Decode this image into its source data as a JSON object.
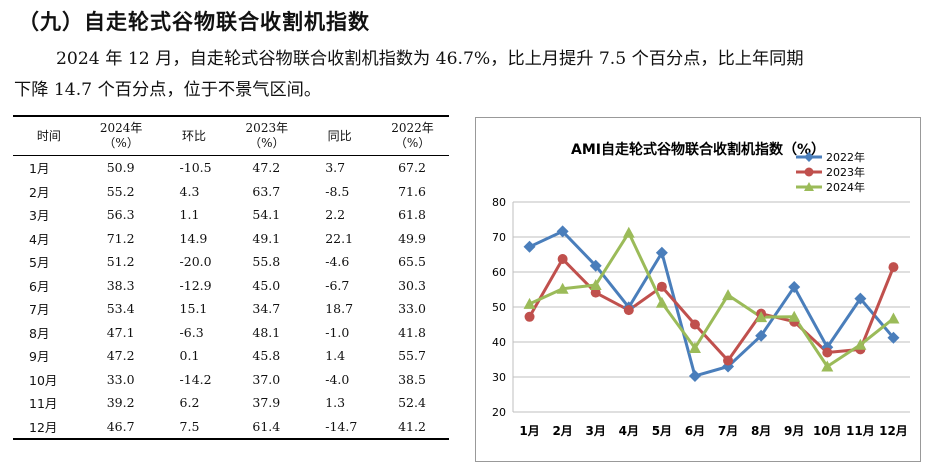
{
  "heading": "（九）自走轮式谷物联合收割机指数",
  "paragraph": {
    "line1": "2024 年 12 月，自走轮式谷物联合收割机指数为 46.7%，比上月提升 7.5 个百分点，比上年同期",
    "line2": "下降 14.7 个百分点，位于不景气区间。"
  },
  "table": {
    "headers": [
      [
        "时间",
        ""
      ],
      [
        "2024年",
        "（%）"
      ],
      [
        "环比",
        ""
      ],
      [
        "2023年",
        "（%）"
      ],
      [
        "同比",
        ""
      ],
      [
        "2022年",
        "（%）"
      ]
    ],
    "rows": [
      [
        "1月",
        "50.9",
        "-10.5",
        "47.2",
        "3.7",
        "67.2"
      ],
      [
        "2月",
        "55.2",
        "4.3",
        "63.7",
        "-8.5",
        "71.6"
      ],
      [
        "3月",
        "56.3",
        "1.1",
        "54.1",
        "2.2",
        "61.8"
      ],
      [
        "4月",
        "71.2",
        "14.9",
        "49.1",
        "22.1",
        "49.9"
      ],
      [
        "5月",
        "51.2",
        "-20.0",
        "55.8",
        "-4.6",
        "65.5"
      ],
      [
        "6月",
        "38.3",
        "-12.9",
        "45.0",
        "-6.7",
        "30.3"
      ],
      [
        "7月",
        "53.4",
        "15.1",
        "34.7",
        "18.7",
        "33.0"
      ],
      [
        "8月",
        "47.1",
        "-6.3",
        "48.1",
        "-1.0",
        "41.8"
      ],
      [
        "9月",
        "47.2",
        "0.1",
        "45.8",
        "1.4",
        "55.7"
      ],
      [
        "10月",
        "33.0",
        "-14.2",
        "37.0",
        "-4.0",
        "38.5"
      ],
      [
        "11月",
        "39.2",
        "6.2",
        "37.9",
        "1.3",
        "52.4"
      ],
      [
        "12月",
        "46.7",
        "7.5",
        "61.4",
        "-14.7",
        "41.2"
      ]
    ]
  },
  "chart_data": {
    "type": "line",
    "title": "AMI自走轮式谷物联合收割机指数（%）",
    "categories": [
      "1月",
      "2月",
      "3月",
      "4月",
      "5月",
      "6月",
      "7月",
      "8月",
      "9月",
      "10月",
      "11月",
      "12月"
    ],
    "ylim": [
      20,
      80
    ],
    "yticks": [
      20,
      30,
      40,
      50,
      60,
      70,
      80
    ],
    "grid": true,
    "legend": "top-right",
    "series": [
      {
        "name": "2022年",
        "color": "#4A7EBB",
        "marker": "diamond",
        "values": [
          67.2,
          71.6,
          61.8,
          49.9,
          65.5,
          30.3,
          33.0,
          41.8,
          55.7,
          38.5,
          52.4,
          41.2
        ]
      },
      {
        "name": "2023年",
        "color": "#C0504D",
        "marker": "circle",
        "values": [
          47.2,
          63.7,
          54.1,
          49.1,
          55.8,
          45.0,
          34.7,
          48.1,
          45.8,
          37.0,
          37.9,
          61.4
        ]
      },
      {
        "name": "2024年",
        "color": "#9BBB59",
        "marker": "triangle",
        "values": [
          50.9,
          55.2,
          56.3,
          71.2,
          51.2,
          38.3,
          53.4,
          47.1,
          47.2,
          33.0,
          39.2,
          46.7
        ]
      }
    ]
  }
}
